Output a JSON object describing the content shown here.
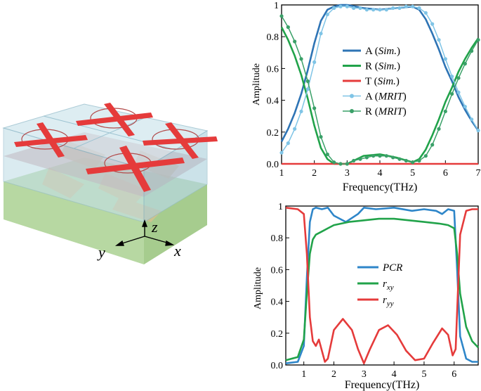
{
  "device": {
    "axis_labels": {
      "z": "z",
      "y": "y",
      "x": "x"
    },
    "colors": {
      "substrate": "#b7d8a2",
      "dielectric": "#bcdbe4",
      "resonator": "#e53b3b",
      "ring": "#b24a4a",
      "hidden_layer": "#d9c08f"
    }
  },
  "chart_data": [
    {
      "type": "line",
      "xlabel": "Frequency(THz)",
      "ylabel": "Amplitude",
      "xlim": [
        1,
        7
      ],
      "ylim": [
        0,
        1.0
      ],
      "xticks": [
        1,
        2,
        3,
        4,
        5,
        6,
        7
      ],
      "yticks": [
        0.0,
        0.2,
        0.4,
        0.6,
        0.8,
        1.0
      ],
      "legend_position": "center",
      "series": [
        {
          "label_main": "A",
          "label_italic": "Sim.",
          "color": "#2e74b5",
          "style": "solid",
          "marker": false,
          "x": [
            1.0,
            1.2,
            1.4,
            1.6,
            1.8,
            2.0,
            2.2,
            2.4,
            2.6,
            2.8,
            3.0,
            3.5,
            4.0,
            4.5,
            5.0,
            5.2,
            5.4,
            5.6,
            5.8,
            6.0,
            6.2,
            6.4,
            6.6,
            6.8,
            7.0
          ],
          "y": [
            0.14,
            0.22,
            0.32,
            0.44,
            0.59,
            0.76,
            0.9,
            0.97,
            0.99,
            1.0,
            1.0,
            0.98,
            0.97,
            0.98,
            0.99,
            0.97,
            0.91,
            0.82,
            0.72,
            0.61,
            0.52,
            0.42,
            0.34,
            0.27,
            0.21
          ]
        },
        {
          "label_main": "R",
          "label_italic": "Sim.",
          "color": "#21a34a",
          "style": "solid",
          "marker": false,
          "x": [
            1.0,
            1.2,
            1.4,
            1.6,
            1.8,
            2.0,
            2.2,
            2.4,
            2.6,
            2.8,
            3.0,
            3.2,
            3.5,
            4.0,
            4.5,
            5.0,
            5.2,
            5.4,
            5.6,
            5.8,
            6.0,
            6.2,
            6.4,
            6.6,
            6.8,
            7.0
          ],
          "y": [
            0.86,
            0.78,
            0.68,
            0.56,
            0.41,
            0.24,
            0.1,
            0.03,
            0.0,
            0.0,
            0.0,
            0.02,
            0.05,
            0.06,
            0.04,
            0.01,
            0.03,
            0.09,
            0.18,
            0.28,
            0.39,
            0.48,
            0.58,
            0.66,
            0.73,
            0.79
          ]
        },
        {
          "label_main": "T",
          "label_italic": "Sim.",
          "color": "#e53b3b",
          "style": "solid",
          "marker": false,
          "x": [
            1.0,
            7.0
          ],
          "y": [
            0.0,
            0.0
          ]
        },
        {
          "label_main": "A",
          "label_italic": "MRIT",
          "color": "#7fc4e6",
          "style": "solid",
          "marker": true,
          "x": [
            1.0,
            1.2,
            1.4,
            1.6,
            1.8,
            2.0,
            2.2,
            2.4,
            2.6,
            2.8,
            3.0,
            3.2,
            3.4,
            3.6,
            3.8,
            4.0,
            4.2,
            4.4,
            4.6,
            4.8,
            5.0,
            5.2,
            5.4,
            5.6,
            5.8,
            6.0,
            6.2,
            6.4,
            6.6,
            6.8,
            7.0
          ],
          "y": [
            0.07,
            0.13,
            0.22,
            0.33,
            0.47,
            0.64,
            0.82,
            0.94,
            0.98,
            0.99,
            0.99,
            0.98,
            0.98,
            0.97,
            0.97,
            0.97,
            0.97,
            0.98,
            0.98,
            0.99,
            0.99,
            0.98,
            0.95,
            0.88,
            0.78,
            0.66,
            0.55,
            0.45,
            0.36,
            0.28,
            0.21
          ]
        },
        {
          "label_main": "R",
          "label_italic": "MRIT",
          "color": "#3aa068",
          "style": "solid",
          "marker": true,
          "x": [
            1.0,
            1.2,
            1.4,
            1.6,
            1.8,
            2.0,
            2.2,
            2.4,
            2.6,
            2.8,
            3.0,
            3.2,
            3.4,
            3.6,
            3.8,
            4.0,
            4.2,
            4.4,
            4.6,
            4.8,
            5.0,
            5.2,
            5.4,
            5.6,
            5.8,
            6.0,
            6.2,
            6.4,
            6.6,
            6.8,
            7.0
          ],
          "y": [
            0.93,
            0.86,
            0.77,
            0.66,
            0.52,
            0.35,
            0.17,
            0.06,
            0.01,
            0.0,
            0.0,
            0.02,
            0.03,
            0.04,
            0.05,
            0.05,
            0.05,
            0.04,
            0.03,
            0.02,
            0.01,
            0.02,
            0.05,
            0.12,
            0.22,
            0.33,
            0.44,
            0.54,
            0.63,
            0.71,
            0.78
          ]
        }
      ]
    },
    {
      "type": "line",
      "xlabel": "Frequency(THz)",
      "ylabel": "Amplitude",
      "xlim": [
        0.4,
        6.8
      ],
      "ylim": [
        0,
        1.0
      ],
      "xticks": [
        1,
        2,
        3,
        4,
        5,
        6
      ],
      "yticks": [
        0.0,
        0.2,
        0.4,
        0.6,
        0.8,
        1.0
      ],
      "legend_position": "center",
      "series": [
        {
          "label_main": "PCR",
          "label_sub": "",
          "color": "#2e86c9",
          "style": "solid",
          "marker": false,
          "x": [
            0.4,
            0.8,
            1.0,
            1.1,
            1.2,
            1.3,
            1.4,
            1.6,
            1.8,
            2.0,
            2.4,
            2.8,
            3.0,
            3.4,
            4.0,
            4.6,
            5.0,
            5.4,
            5.6,
            5.8,
            6.0,
            6.1,
            6.2,
            6.4,
            6.6,
            6.8
          ],
          "y": [
            0.01,
            0.02,
            0.12,
            0.55,
            0.9,
            0.98,
            0.99,
            0.98,
            0.99,
            0.94,
            0.9,
            0.95,
            0.99,
            0.98,
            0.99,
            0.97,
            0.98,
            0.97,
            0.95,
            0.98,
            0.97,
            0.6,
            0.18,
            0.04,
            0.02,
            0.02
          ]
        },
        {
          "label_main": "r",
          "label_sub": "xy",
          "color": "#21a34a",
          "style": "solid",
          "marker": false,
          "x": [
            0.4,
            0.8,
            1.0,
            1.1,
            1.2,
            1.3,
            1.4,
            1.6,
            1.8,
            2.0,
            2.5,
            3.0,
            3.5,
            4.0,
            4.5,
            5.0,
            5.5,
            5.8,
            6.0,
            6.1,
            6.2,
            6.4,
            6.6,
            6.8
          ],
          "y": [
            0.03,
            0.05,
            0.16,
            0.45,
            0.7,
            0.79,
            0.82,
            0.84,
            0.86,
            0.88,
            0.9,
            0.91,
            0.92,
            0.92,
            0.91,
            0.9,
            0.89,
            0.88,
            0.86,
            0.7,
            0.45,
            0.24,
            0.15,
            0.11
          ]
        },
        {
          "label_main": "r",
          "label_sub": "yy",
          "color": "#e53b3b",
          "style": "solid",
          "marker": false,
          "x": [
            0.4,
            0.8,
            1.0,
            1.1,
            1.2,
            1.3,
            1.4,
            1.5,
            1.6,
            1.7,
            1.8,
            2.0,
            2.3,
            2.6,
            2.8,
            3.0,
            3.2,
            3.5,
            3.8,
            4.1,
            4.4,
            4.7,
            5.0,
            5.3,
            5.6,
            5.8,
            5.95,
            6.05,
            6.2,
            6.4,
            6.6,
            6.8
          ],
          "y": [
            0.99,
            0.98,
            0.95,
            0.7,
            0.3,
            0.15,
            0.12,
            0.16,
            0.09,
            0.02,
            0.04,
            0.22,
            0.29,
            0.22,
            0.1,
            0.01,
            0.1,
            0.22,
            0.25,
            0.19,
            0.09,
            0.03,
            0.04,
            0.14,
            0.23,
            0.19,
            0.06,
            0.1,
            0.82,
            0.97,
            0.98,
            0.98
          ]
        }
      ]
    }
  ]
}
